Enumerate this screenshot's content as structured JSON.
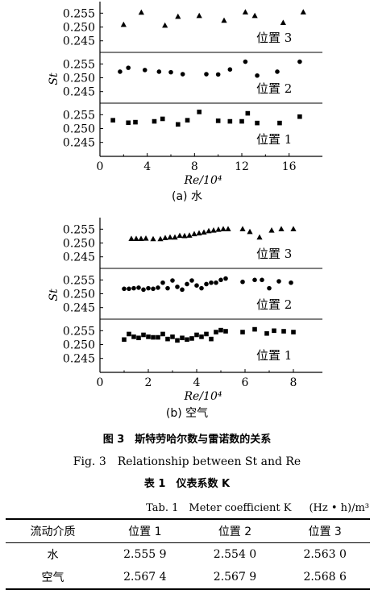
{
  "figure": {
    "caption_cn": "图 3　斯特劳哈尔数与雷诺数的关系",
    "caption_en": "Fig. 3　Relationship between St and Re"
  },
  "chart_data": [
    {
      "type": "scatter",
      "sublabel": "(a) 水",
      "xlabel": "Re/10⁴",
      "ylabel": "St",
      "xlim": [
        0,
        18
      ],
      "xticks": [
        "0",
        "4",
        "8",
        "12",
        "16"
      ],
      "panels": [
        {
          "name": "位置 3",
          "marker": "triangle",
          "yticks": [
            "0.255",
            "0.250",
            "0.245"
          ],
          "ylim": [
            0.242,
            0.258
          ],
          "points": [
            [
              2,
              0.2508
            ],
            [
              3.5,
              0.2552
            ],
            [
              5.5,
              0.2505
            ],
            [
              6.6,
              0.2537
            ],
            [
              8.4,
              0.254
            ],
            [
              10.5,
              0.2523
            ],
            [
              12.3,
              0.2553
            ],
            [
              13.1,
              0.254
            ],
            [
              15.5,
              0.2515
            ],
            [
              17.2,
              0.2553
            ]
          ]
        },
        {
          "name": "位置 2",
          "marker": "circle",
          "yticks": [
            "0.255",
            "0.250",
            "0.245"
          ],
          "ylim": [
            0.242,
            0.258
          ],
          "points": [
            [
              1.7,
              0.2522
            ],
            [
              2.4,
              0.2536
            ],
            [
              3.8,
              0.2528
            ],
            [
              5,
              0.2522
            ],
            [
              6,
              0.252
            ],
            [
              7,
              0.2513
            ],
            [
              9,
              0.2513
            ],
            [
              10,
              0.2512
            ],
            [
              11,
              0.253
            ],
            [
              12.3,
              0.2558
            ],
            [
              13.3,
              0.2508
            ],
            [
              15,
              0.2522
            ],
            [
              16.9,
              0.2558
            ]
          ]
        },
        {
          "name": "位置 1",
          "marker": "square",
          "yticks": [
            "0.255",
            "0.250",
            "0.245"
          ],
          "ylim": [
            0.242,
            0.258
          ],
          "points": [
            [
              1.1,
              0.253
            ],
            [
              2.4,
              0.2521
            ],
            [
              3,
              0.2523
            ],
            [
              4.6,
              0.2526
            ],
            [
              5.3,
              0.2535
            ],
            [
              6.6,
              0.2515
            ],
            [
              7.4,
              0.253
            ],
            [
              8.4,
              0.256
            ],
            [
              10,
              0.2528
            ],
            [
              11,
              0.2526
            ],
            [
              12,
              0.2526
            ],
            [
              12.5,
              0.2555
            ],
            [
              13.3,
              0.252
            ],
            [
              15.2,
              0.252
            ],
            [
              16.9,
              0.2543
            ]
          ]
        }
      ]
    },
    {
      "type": "scatter",
      "sublabel": "(b) 空气",
      "xlabel": "Re/10⁴",
      "ylabel": "St",
      "xlim": [
        0,
        8.8
      ],
      "xticks": [
        "0",
        "2",
        "4",
        "6",
        "8"
      ],
      "panels": [
        {
          "name": "位置 3",
          "marker": "triangle",
          "yticks": [
            "0.255",
            "0.250",
            "0.245"
          ],
          "ylim": [
            0.242,
            0.258
          ],
          "points": [
            [
              1.3,
              0.2515
            ],
            [
              1.5,
              0.2515
            ],
            [
              1.7,
              0.2515
            ],
            [
              1.9,
              0.2516
            ],
            [
              2.2,
              0.2514
            ],
            [
              2.5,
              0.2514
            ],
            [
              2.7,
              0.2518
            ],
            [
              2.9,
              0.252
            ],
            [
              3.1,
              0.252
            ],
            [
              3.3,
              0.2526
            ],
            [
              3.5,
              0.2525
            ],
            [
              3.7,
              0.2527
            ],
            [
              3.9,
              0.2532
            ],
            [
              4.1,
              0.2535
            ],
            [
              4.3,
              0.2538
            ],
            [
              4.5,
              0.2543
            ],
            [
              4.7,
              0.2545
            ],
            [
              4.9,
              0.2548
            ],
            [
              5.1,
              0.255
            ],
            [
              5.3,
              0.255
            ],
            [
              5.9,
              0.255
            ],
            [
              6.2,
              0.254
            ],
            [
              6.6,
              0.252
            ],
            [
              7.1,
              0.2545
            ],
            [
              7.5,
              0.255
            ],
            [
              8,
              0.255
            ]
          ]
        },
        {
          "name": "位置 2",
          "marker": "circle",
          "yticks": [
            "0.255",
            "0.250",
            "0.245"
          ],
          "ylim": [
            0.242,
            0.258
          ],
          "points": [
            [
              1,
              0.2518
            ],
            [
              1.2,
              0.2518
            ],
            [
              1.4,
              0.252
            ],
            [
              1.6,
              0.2522
            ],
            [
              1.8,
              0.2515
            ],
            [
              2,
              0.252
            ],
            [
              2.2,
              0.2518
            ],
            [
              2.4,
              0.2522
            ],
            [
              2.6,
              0.254
            ],
            [
              2.8,
              0.252
            ],
            [
              3,
              0.2548
            ],
            [
              3.2,
              0.2525
            ],
            [
              3.4,
              0.2515
            ],
            [
              3.6,
              0.2535
            ],
            [
              3.8,
              0.2548
            ],
            [
              4,
              0.253
            ],
            [
              4.2,
              0.252
            ],
            [
              4.4,
              0.2535
            ],
            [
              4.6,
              0.254
            ],
            [
              4.8,
              0.254
            ],
            [
              5,
              0.255
            ],
            [
              5.2,
              0.2555
            ],
            [
              5.9,
              0.2543
            ],
            [
              6.4,
              0.255
            ],
            [
              6.7,
              0.255
            ],
            [
              7,
              0.252
            ],
            [
              7.4,
              0.2545
            ],
            [
              7.9,
              0.254
            ]
          ]
        },
        {
          "name": "位置 1",
          "marker": "square",
          "yticks": [
            "0.255",
            "0.250",
            "0.245"
          ],
          "ylim": [
            0.242,
            0.258
          ],
          "points": [
            [
              1,
              0.2518
            ],
            [
              1.2,
              0.2538
            ],
            [
              1.4,
              0.2528
            ],
            [
              1.6,
              0.2524
            ],
            [
              1.8,
              0.2535
            ],
            [
              2,
              0.2528
            ],
            [
              2.2,
              0.2526
            ],
            [
              2.4,
              0.2526
            ],
            [
              2.6,
              0.2538
            ],
            [
              2.8,
              0.252
            ],
            [
              3,
              0.2528
            ],
            [
              3.2,
              0.2515
            ],
            [
              3.4,
              0.2524
            ],
            [
              3.6,
              0.2518
            ],
            [
              3.8,
              0.2522
            ],
            [
              4,
              0.2535
            ],
            [
              4.2,
              0.2528
            ],
            [
              4.4,
              0.2538
            ],
            [
              4.6,
              0.252
            ],
            [
              4.8,
              0.2545
            ],
            [
              5,
              0.2552
            ],
            [
              5.2,
              0.2548
            ],
            [
              5.9,
              0.2545
            ],
            [
              6.4,
              0.2555
            ],
            [
              6.9,
              0.254
            ],
            [
              7.2,
              0.255
            ],
            [
              7.6,
              0.2548
            ],
            [
              8,
              0.2545
            ]
          ]
        }
      ]
    }
  ],
  "table": {
    "title_cn": "表 1　仪表系数 K",
    "title_en": "Tab. 1　Meter coefficient K",
    "unit": "(Hz • h)/m³",
    "headers": [
      "流动介质",
      "位置 1",
      "位置 2",
      "位置 3"
    ],
    "rows": [
      [
        "水",
        "2.555 9",
        "2.554 0",
        "2.563 0"
      ],
      [
        "空气",
        "2.567 4",
        "2.567 9",
        "2.568 6"
      ]
    ]
  }
}
